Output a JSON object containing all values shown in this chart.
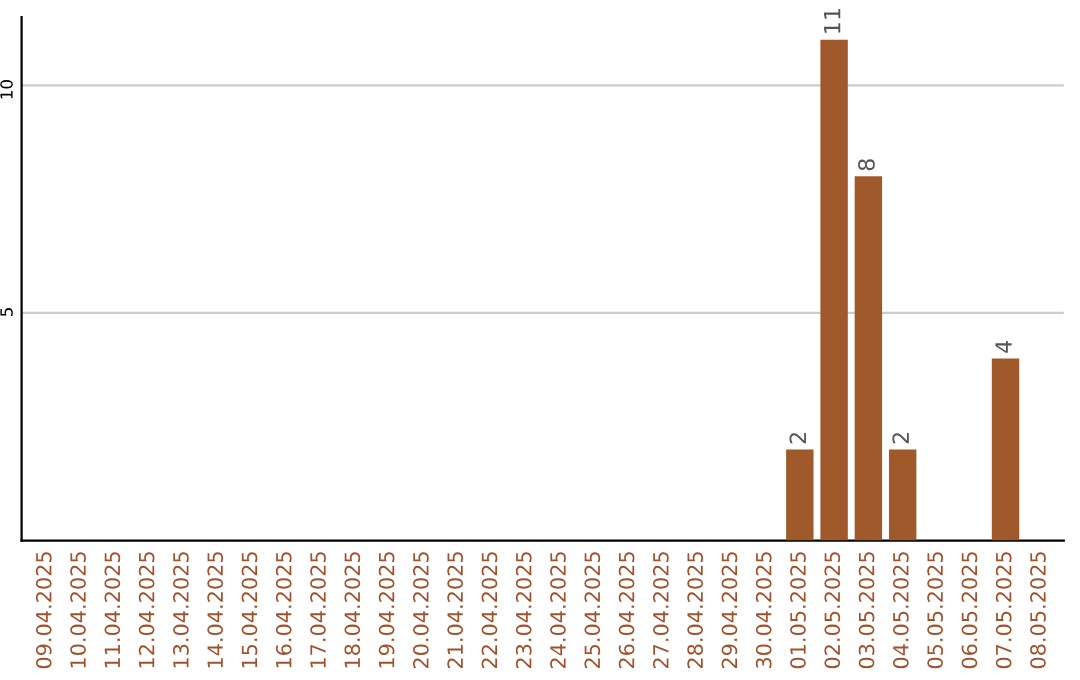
{
  "chart_data": {
    "type": "bar",
    "categories": [
      "09.04.2025",
      "10.04.2025",
      "11.04.2025",
      "12.04.2025",
      "13.04.2025",
      "14.04.2025",
      "15.04.2025",
      "16.04.2025",
      "17.04.2025",
      "18.04.2025",
      "19.04.2025",
      "20.04.2025",
      "21.04.2025",
      "22.04.2025",
      "23.04.2025",
      "24.04.2025",
      "25.04.2025",
      "26.04.2025",
      "27.04.2025",
      "28.04.2025",
      "29.04.2025",
      "30.04.2025",
      "01.05.2025",
      "02.05.2025",
      "03.05.2025",
      "04.05.2025",
      "05.05.2025",
      "06.05.2025",
      "07.05.2025",
      "08.05.2025"
    ],
    "values": [
      0,
      0,
      0,
      0,
      0,
      0,
      0,
      0,
      0,
      0,
      0,
      0,
      0,
      0,
      0,
      0,
      0,
      0,
      0,
      0,
      0,
      0,
      2,
      11,
      8,
      2,
      0,
      0,
      4,
      0
    ],
    "value_labels": [
      null,
      null,
      null,
      null,
      null,
      null,
      null,
      null,
      null,
      null,
      null,
      null,
      null,
      null,
      null,
      null,
      null,
      null,
      null,
      null,
      null,
      null,
      "2",
      "11",
      "8",
      "2",
      null,
      null,
      "4",
      null
    ],
    "color": "#a0592a",
    "ylim": [
      0,
      11.5
    ],
    "yticks": [
      5,
      10
    ],
    "grid": "y"
  }
}
